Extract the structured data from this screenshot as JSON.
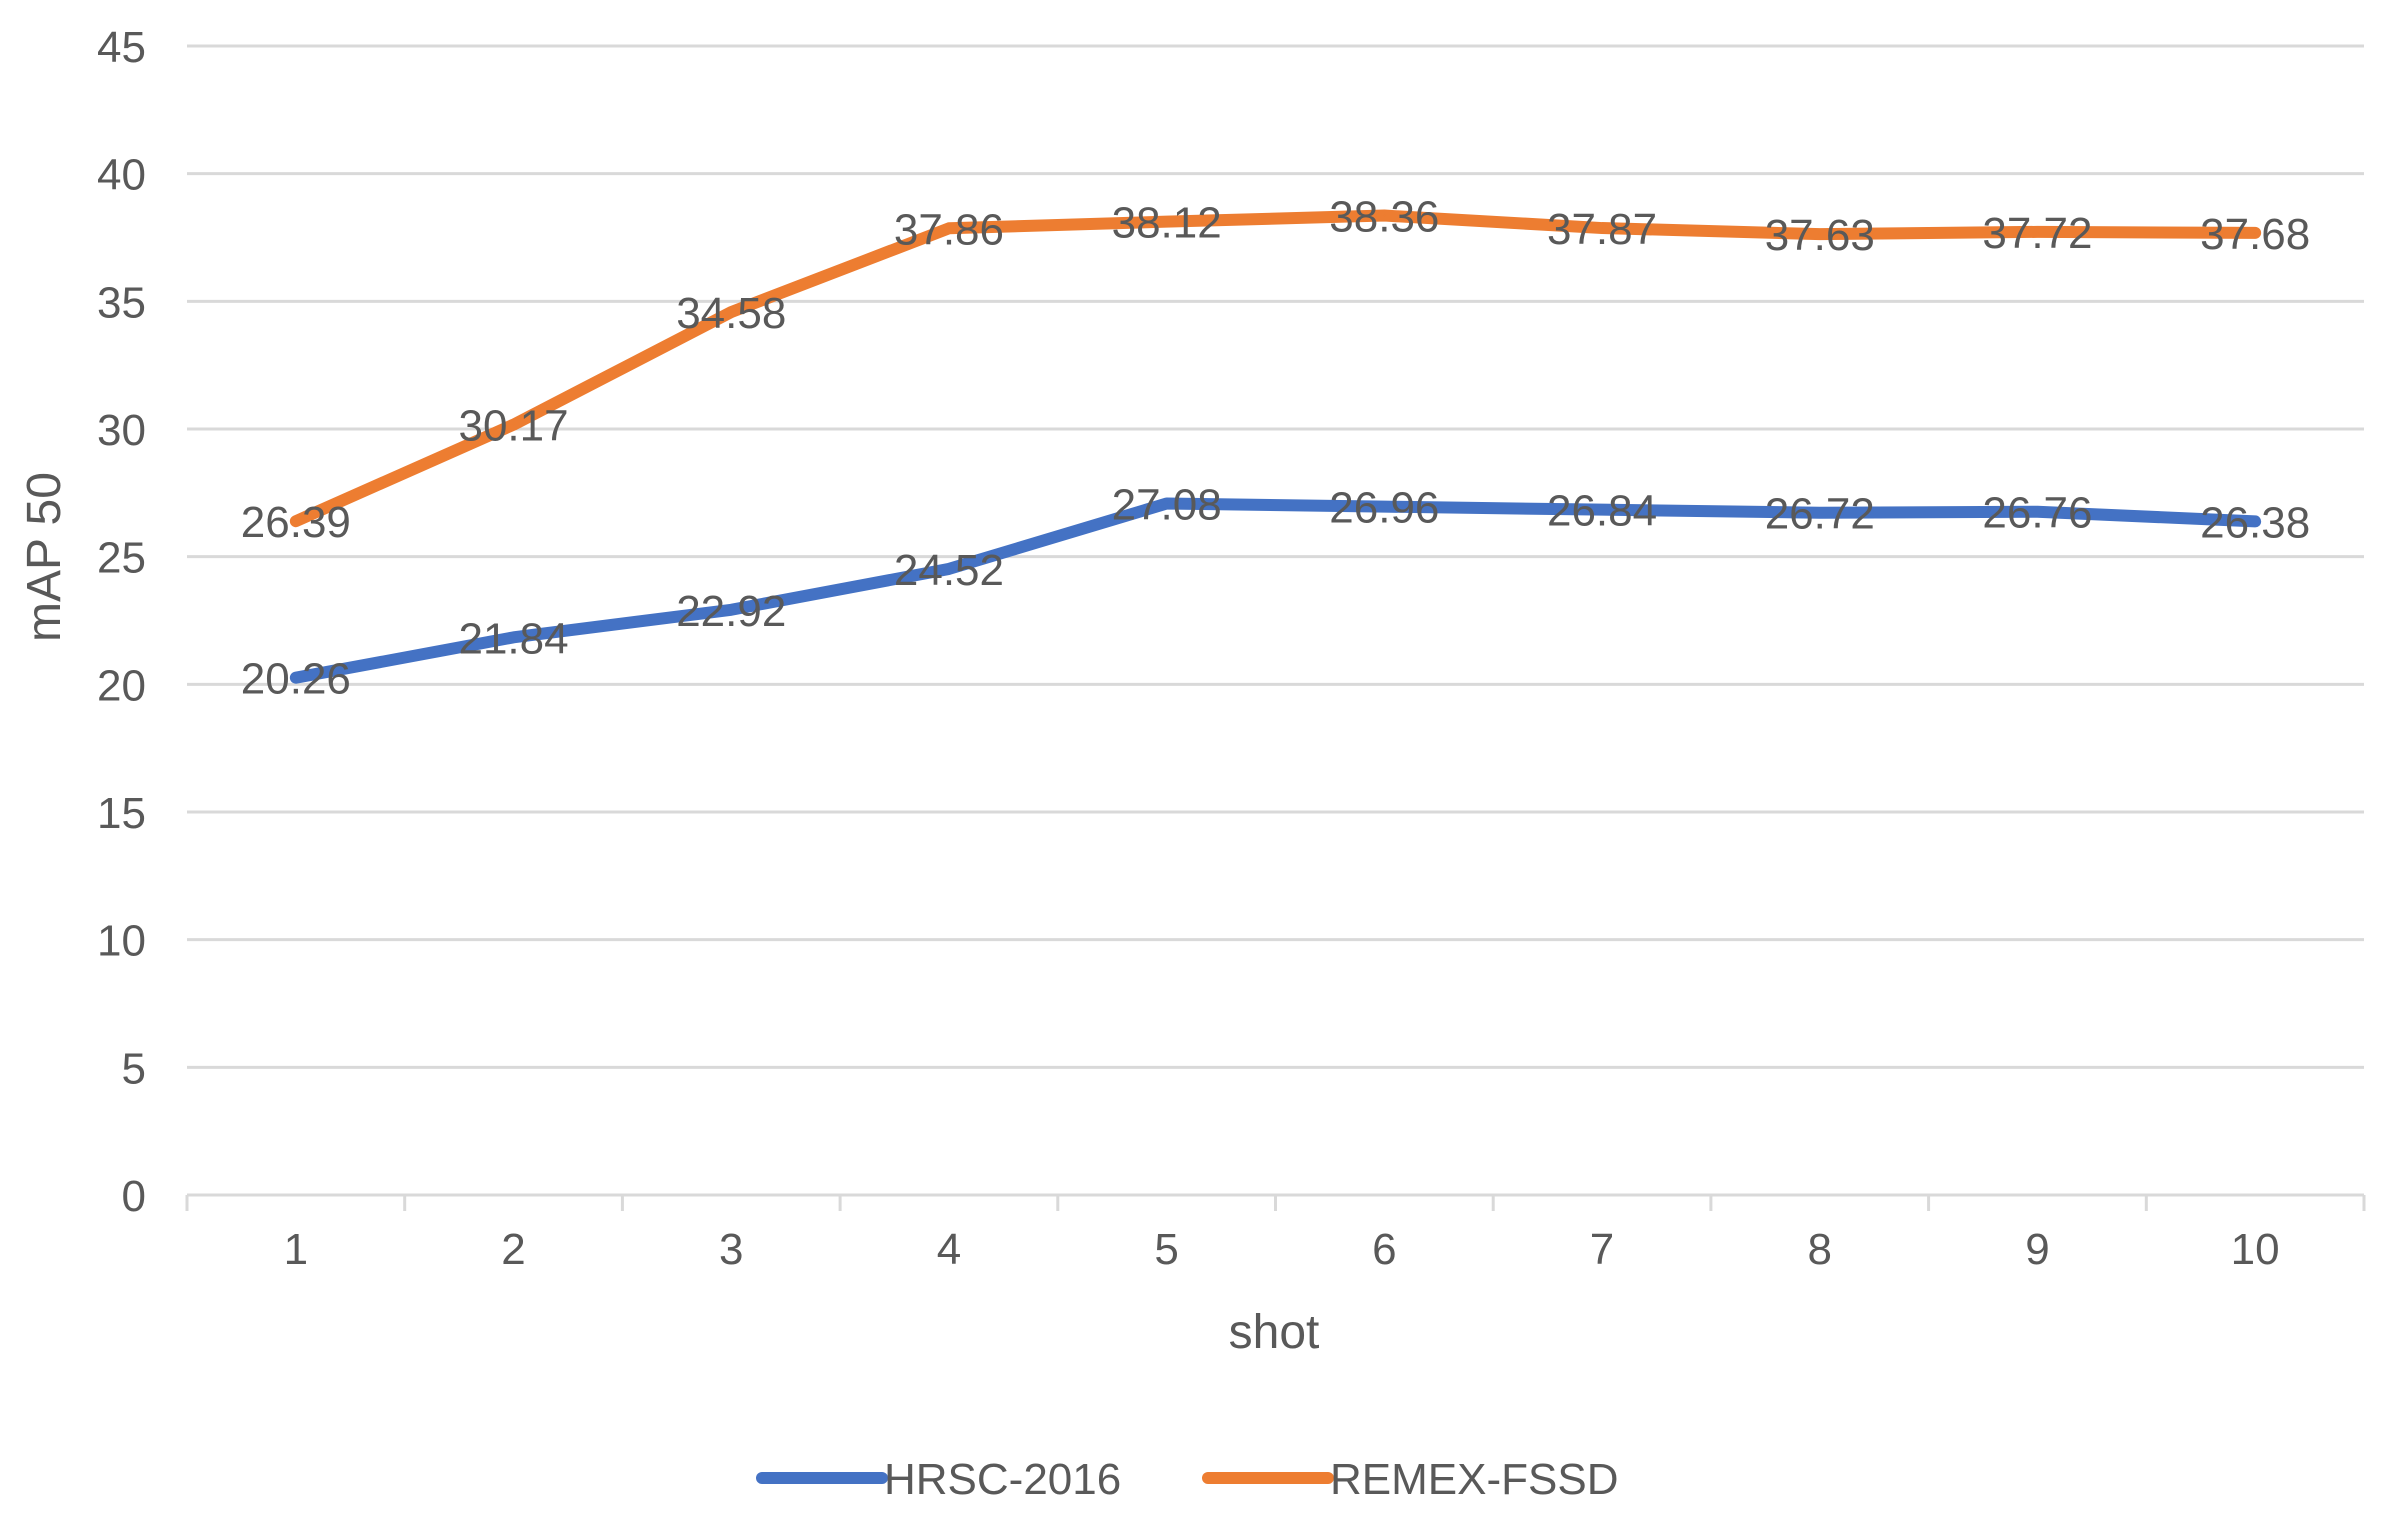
{
  "chart_data": {
    "type": "line",
    "title": "",
    "xlabel": "shot",
    "ylabel": "mAP 50",
    "categories": [
      "1",
      "2",
      "3",
      "4",
      "5",
      "6",
      "7",
      "8",
      "9",
      "10"
    ],
    "ylim": [
      0,
      45
    ],
    "yticks": [
      0,
      5,
      10,
      15,
      20,
      25,
      30,
      35,
      40,
      45
    ],
    "grid": "horizontal",
    "legend_position": "bottom",
    "data_labels": true,
    "series": [
      {
        "name": "HRSC-2016",
        "color": "#4472C4",
        "values": [
          20.26,
          21.84,
          22.92,
          24.52,
          27.08,
          26.96,
          26.84,
          26.72,
          26.76,
          26.38
        ],
        "labels": [
          "20.26",
          "21.84",
          "22.92",
          "24.52",
          "27.08",
          "26.96",
          "26.84",
          "26.72",
          "26.76",
          "26.38"
        ]
      },
      {
        "name": "REMEX-FSSD",
        "color": "#ED7D31",
        "values": [
          26.39,
          30.17,
          34.58,
          37.86,
          38.12,
          38.36,
          37.87,
          37.63,
          37.72,
          37.68
        ],
        "labels": [
          "26.39",
          "30.17",
          "34.58",
          "37.86",
          "38.12",
          "38.36",
          "37.87",
          "37.63",
          "37.72",
          "37.68"
        ]
      }
    ]
  }
}
